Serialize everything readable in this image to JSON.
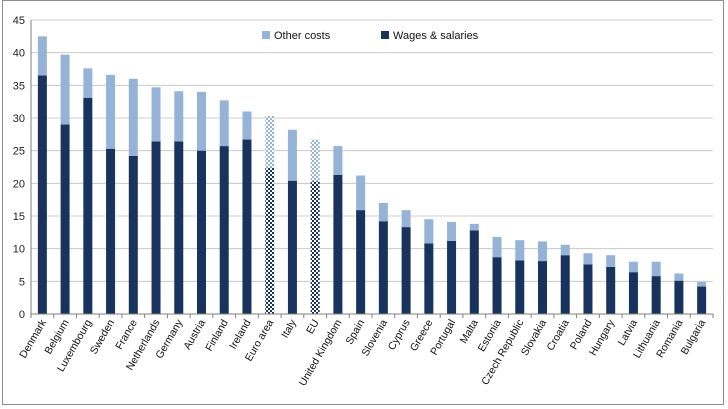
{
  "chart_data": {
    "type": "bar",
    "stacked": true,
    "categories": [
      "Denmark",
      "Belgium",
      "Luxembourg",
      "Sweden",
      "France",
      "Netherlands",
      "Germany",
      "Austria",
      "Finland",
      "Ireland",
      "Euro area",
      "Italy",
      "EU",
      "United Kingdom",
      "Spain",
      "Slovenia",
      "Cyprus",
      "Greece",
      "Portugal",
      "Malta",
      "Estonia",
      "Czech Republic",
      "Slovakia",
      "Croatia",
      "Poland",
      "Hungary",
      "Latvia",
      "Lithuania",
      "Romania",
      "Bulgaria"
    ],
    "series": [
      {
        "name": "Wages & salaries",
        "values": [
          36.5,
          29.0,
          33.1,
          25.3,
          24.2,
          26.4,
          26.4,
          25.0,
          25.7,
          26.7,
          22.4,
          20.4,
          20.3,
          21.3,
          15.9,
          14.2,
          13.3,
          10.8,
          11.2,
          12.8,
          8.7,
          8.2,
          8.1,
          9.0,
          7.6,
          7.2,
          6.4,
          5.8,
          5.1,
          4.2
        ]
      },
      {
        "name": "Other costs",
        "values": [
          6.0,
          10.7,
          4.5,
          11.3,
          11.8,
          8.3,
          7.7,
          9.0,
          7.0,
          4.3,
          7.9,
          7.8,
          6.4,
          4.4,
          5.3,
          2.8,
          2.6,
          3.7,
          2.9,
          1.0,
          3.1,
          3.1,
          3.0,
          1.6,
          1.7,
          1.8,
          1.6,
          2.2,
          1.1,
          0.7
        ]
      }
    ],
    "highlighted_categories": [
      "Euro area",
      "EU"
    ],
    "ylim": [
      0,
      45
    ],
    "yticks": [
      0,
      5,
      10,
      15,
      20,
      25,
      30,
      35,
      40,
      45
    ],
    "grid": true,
    "legend": "top-center",
    "colors": {
      "wages": "#17335e",
      "other": "#95b3d7",
      "grid": "#bfbfbf",
      "axis": "#7f7f7f"
    }
  }
}
